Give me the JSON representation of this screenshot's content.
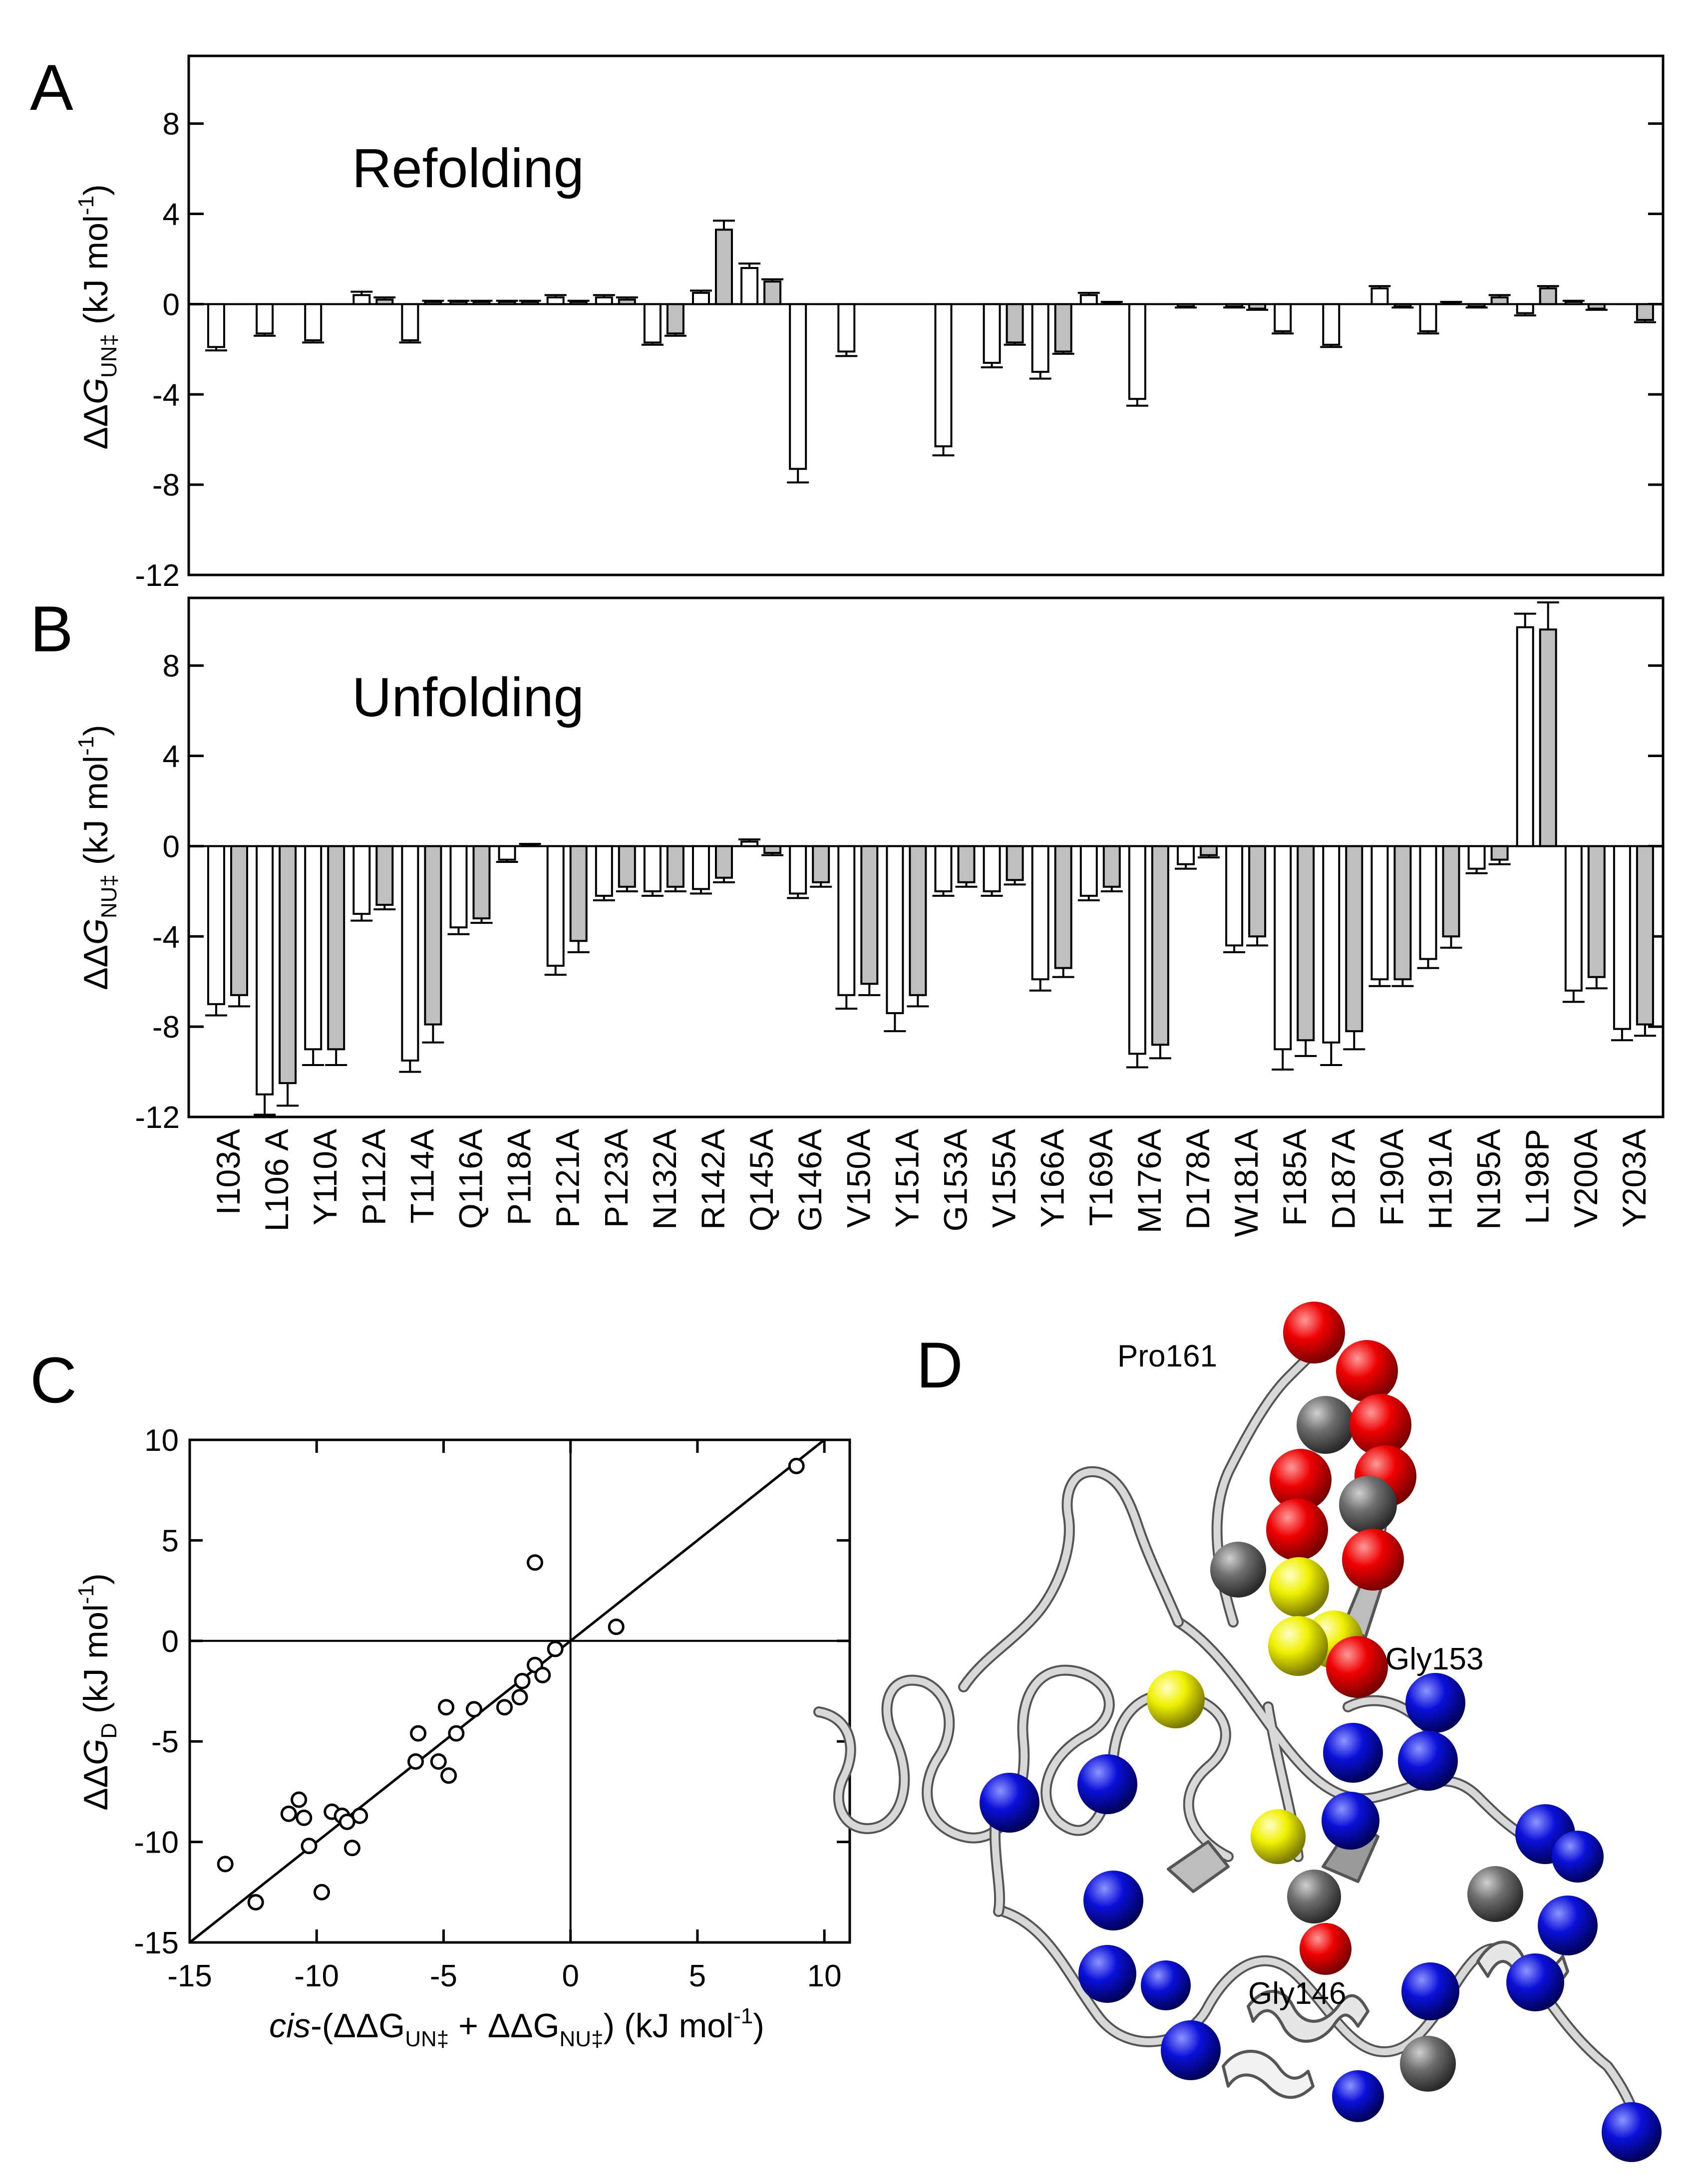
{
  "figure": {
    "panels": [
      "A",
      "B",
      "C",
      "D"
    ]
  },
  "chart_data": [
    {
      "id": "A",
      "type": "bar",
      "annotation": "Refolding",
      "ylabel_parts": [
        "ΔΔ",
        "G",
        "UN‡",
        " (kJ mol",
        "-1",
        ")"
      ],
      "ylim": [
        -12,
        11
      ],
      "yticks": [
        -12,
        -8,
        -4,
        0,
        4,
        8
      ],
      "categories": [
        "I103A",
        "L106 A",
        "Y110A",
        "P112A",
        "T114A",
        "Q116A",
        "P118A",
        "P121A",
        "P123A",
        "N132A",
        "R142A",
        "Q145A",
        "G146A",
        "V150A",
        "Y151A",
        "G153A",
        "V155A",
        "Y166A",
        "T169A",
        "M176A",
        "D178A",
        "W181A",
        "F185A",
        "D187A",
        "F190A",
        "H191A",
        "N195A",
        "L198P",
        "V200A",
        "Y203A"
      ],
      "series": [
        {
          "name": "white",
          "color": "#ffffff",
          "values": [
            -1.9,
            -1.3,
            -1.6,
            0.4,
            -1.6,
            0.1,
            0.1,
            0.3,
            0.3,
            -1.7,
            0.5,
            1.6,
            -7.3,
            -2.1,
            null,
            -6.3,
            -2.6,
            -3.0,
            0.4,
            -4.2,
            -0.1,
            -0.1,
            -1.2,
            -1.8,
            0.7,
            -1.2,
            -0.1,
            -0.4,
            0.1,
            null
          ],
          "errors": [
            0.15,
            0.1,
            0.1,
            0.15,
            0.1,
            0.05,
            0.05,
            0.1,
            0.1,
            0.1,
            0.1,
            0.2,
            0.6,
            0.2,
            null,
            0.4,
            0.2,
            0.3,
            0.1,
            0.3,
            0.05,
            0.05,
            0.1,
            0.1,
            0.1,
            0.1,
            0.05,
            0.1,
            0.05,
            null
          ]
        },
        {
          "name": "gray",
          "color": "#bfbfbf",
          "values": [
            null,
            null,
            null,
            0.2,
            0.1,
            0.1,
            0.1,
            0.1,
            0.2,
            -1.3,
            3.3,
            1.0,
            null,
            null,
            null,
            null,
            -1.7,
            -2.1,
            0.05,
            null,
            null,
            -0.2,
            null,
            null,
            -0.1,
            0.05,
            0.3,
            0.7,
            -0.2,
            -0.7
          ],
          "errors": [
            null,
            null,
            null,
            0.1,
            0.05,
            0.05,
            0.05,
            0.05,
            0.1,
            0.1,
            0.4,
            0.1,
            null,
            null,
            null,
            null,
            0.1,
            0.1,
            0.05,
            null,
            null,
            0.05,
            null,
            null,
            0.05,
            0.05,
            0.1,
            0.1,
            0.05,
            0.1
          ]
        }
      ]
    },
    {
      "id": "B",
      "type": "bar",
      "annotation": "Unfolding",
      "ylabel_parts": [
        "ΔΔ",
        "G",
        "NU‡",
        " (kJ mol",
        "-1",
        ")"
      ],
      "ylim": [
        -12,
        11
      ],
      "yticks": [
        -12,
        -8,
        -4,
        0,
        4,
        8
      ],
      "categories": [
        "I103A",
        "L106 A",
        "Y110A",
        "P112A",
        "T114A",
        "Q116A",
        "P118A",
        "P121A",
        "P123A",
        "N132A",
        "R142A",
        "Q145A",
        "G146A",
        "V150A",
        "Y151A",
        "G153A",
        "V155A",
        "Y166A",
        "T169A",
        "M176A",
        "D178A",
        "W181A",
        "F185A",
        "D187A",
        "F190A",
        "H191A",
        "N195A",
        "L198P",
        "V200A",
        "Y203A"
      ],
      "series": [
        {
          "name": "white",
          "color": "#ffffff",
          "values": [
            -7.0,
            -11.0,
            -9.0,
            -3.0,
            -9.5,
            -3.6,
            -0.6,
            -5.3,
            -2.2,
            -2.0,
            -1.9,
            0.2,
            -2.1,
            -6.6,
            -7.4,
            -2.0,
            -2.0,
            -5.9,
            -2.2,
            -9.2,
            -0.8,
            -4.4,
            -9.0,
            -8.7,
            -5.9,
            -5.0,
            -1.0,
            9.7,
            -6.4,
            -8.1
          ],
          "errors": [
            0.5,
            0.9,
            0.7,
            0.3,
            0.5,
            0.3,
            0.1,
            0.4,
            0.2,
            0.2,
            0.2,
            0.1,
            0.2,
            0.6,
            0.8,
            0.2,
            0.2,
            0.5,
            0.2,
            0.6,
            0.2,
            0.3,
            0.9,
            1.0,
            0.3,
            0.4,
            0.2,
            0.6,
            0.5,
            0.5
          ]
        },
        {
          "name": "gray",
          "color": "#bfbfbf",
          "values": [
            -6.6,
            -10.5,
            -9.0,
            -2.6,
            -7.9,
            -3.2,
            0.05,
            -4.2,
            -1.8,
            -1.8,
            -1.4,
            -0.3,
            -1.6,
            -6.1,
            -6.6,
            -1.6,
            -1.5,
            -5.4,
            -1.8,
            -8.8,
            -0.4,
            -4.0,
            -8.6,
            -8.2,
            -5.9,
            -4.0,
            -0.6,
            9.6,
            -5.8,
            -7.9
          ],
          "errors": [
            0.5,
            1.0,
            0.7,
            0.2,
            0.8,
            0.2,
            0.05,
            0.5,
            0.2,
            0.2,
            0.2,
            0.1,
            0.2,
            0.5,
            0.5,
            0.2,
            0.2,
            0.4,
            0.2,
            0.6,
            0.1,
            0.4,
            0.7,
            0.8,
            0.3,
            0.5,
            0.2,
            1.2,
            0.5,
            0.5
          ]
        }
      ]
    },
    {
      "id": "C",
      "type": "scatter",
      "xlabel_parts": [
        "cis",
        "-(ΔΔG",
        "UN‡",
        " + ΔΔG",
        "NU‡",
        ") (kJ mol",
        "-1",
        ")"
      ],
      "ylabel_parts": [
        "ΔΔ",
        "G",
        "D",
        " (kJ mol",
        "-1",
        ")"
      ],
      "xlim": [
        -15,
        11
      ],
      "ylim": [
        -15,
        10
      ],
      "xticks": [
        -15,
        -10,
        -5,
        0,
        5,
        10
      ],
      "yticks": [
        -15,
        -10,
        -5,
        0,
        5,
        10
      ],
      "fit_line": {
        "slope": 1.0,
        "intercept": 0.0
      },
      "points": [
        [
          -13.6,
          -11.1
        ],
        [
          -12.4,
          -13.0
        ],
        [
          -11.1,
          -8.6
        ],
        [
          -10.7,
          -7.9
        ],
        [
          -10.5,
          -8.8
        ],
        [
          -10.3,
          -10.2
        ],
        [
          -9.8,
          -12.5
        ],
        [
          -9.4,
          -8.5
        ],
        [
          -9.0,
          -8.7
        ],
        [
          -8.8,
          -9.0
        ],
        [
          -8.6,
          -10.3
        ],
        [
          -8.3,
          -8.7
        ],
        [
          -6.1,
          -6.0
        ],
        [
          -6.0,
          -4.6
        ],
        [
          -5.2,
          -6.0
        ],
        [
          -4.9,
          -3.3
        ],
        [
          -4.8,
          -6.7
        ],
        [
          -4.5,
          -4.6
        ],
        [
          -3.8,
          -3.4
        ],
        [
          -2.6,
          -3.3
        ],
        [
          -2.0,
          -2.8
        ],
        [
          -1.9,
          -2.0
        ],
        [
          -1.4,
          -1.2
        ],
        [
          -1.1,
          -1.7
        ],
        [
          -0.6,
          -0.4
        ],
        [
          -1.4,
          3.9
        ],
        [
          1.8,
          0.7
        ],
        [
          8.9,
          8.7
        ]
      ]
    }
  ],
  "structure": {
    "labels": [
      "Pro161",
      "Gly153",
      "Gly146"
    ],
    "colors": {
      "red": "#ee0000",
      "blue": "#0a10d8",
      "yellow": "#f0f000",
      "gray": "#6e6e6e",
      "ribbon": "#d8d8d8"
    }
  }
}
